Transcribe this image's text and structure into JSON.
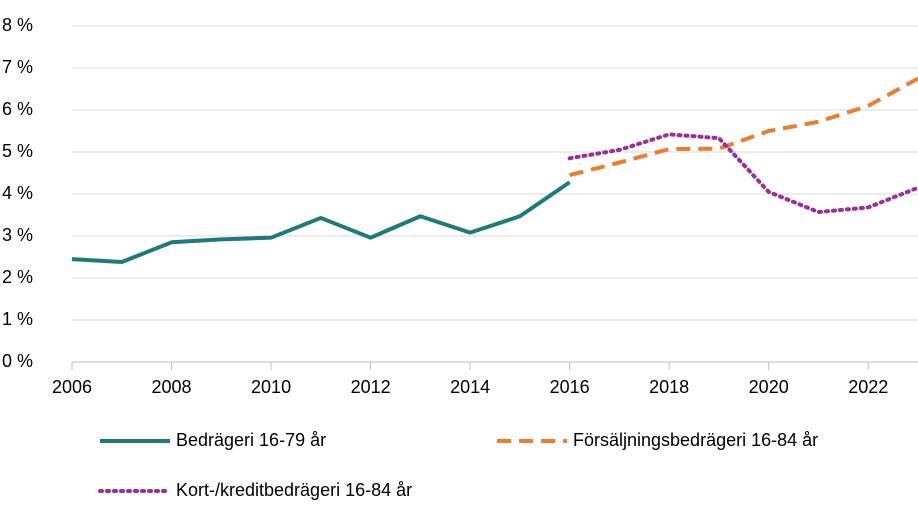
{
  "chart_data": {
    "type": "line",
    "x": [
      2006,
      2007,
      2008,
      2009,
      2010,
      2011,
      2012,
      2013,
      2014,
      2015,
      2016,
      2017,
      2018,
      2019,
      2020,
      2021,
      2022,
      2023
    ],
    "series": [
      {
        "name": "Bedrägeri 16-79 år",
        "color": "#1f7a7a",
        "style": "solid",
        "values": [
          2.45,
          2.38,
          2.85,
          2.92,
          2.96,
          3.43,
          2.96,
          3.47,
          3.08,
          3.47,
          4.28,
          null,
          null,
          null,
          null,
          null,
          null,
          null
        ]
      },
      {
        "name": "Försäljningsbedrägeri 16-84 år",
        "color": "#ed7d31",
        "style": "dashed",
        "values": [
          null,
          null,
          null,
          null,
          null,
          null,
          null,
          null,
          null,
          null,
          4.45,
          4.75,
          5.07,
          5.08,
          5.5,
          5.72,
          6.1,
          6.75
        ]
      },
      {
        "name": "Kort-/kreditbedrägeri 16-84 år",
        "color": "#9b2f9b",
        "style": "dotted",
        "values": [
          null,
          null,
          null,
          null,
          null,
          null,
          null,
          null,
          null,
          null,
          4.85,
          5.05,
          5.42,
          5.33,
          4.05,
          3.57,
          3.68,
          4.15
        ]
      }
    ],
    "xlim": [
      2006,
      2023
    ],
    "xticks": [
      2006,
      2008,
      2010,
      2012,
      2014,
      2016,
      2018,
      2020,
      2022
    ],
    "ylim": [
      0,
      8
    ],
    "yticks": [
      {
        "value": 0,
        "label": "0 %"
      },
      {
        "value": 1,
        "label": "1 %"
      },
      {
        "value": 2,
        "label": "2 %"
      },
      {
        "value": 3,
        "label": "3 %"
      },
      {
        "value": 4,
        "label": "4 %"
      },
      {
        "value": 5,
        "label": "5 %"
      },
      {
        "value": 6,
        "label": "6 %"
      },
      {
        "value": 7,
        "label": "7 %"
      },
      {
        "value": 8,
        "label": "8 %"
      }
    ],
    "grid": true
  }
}
